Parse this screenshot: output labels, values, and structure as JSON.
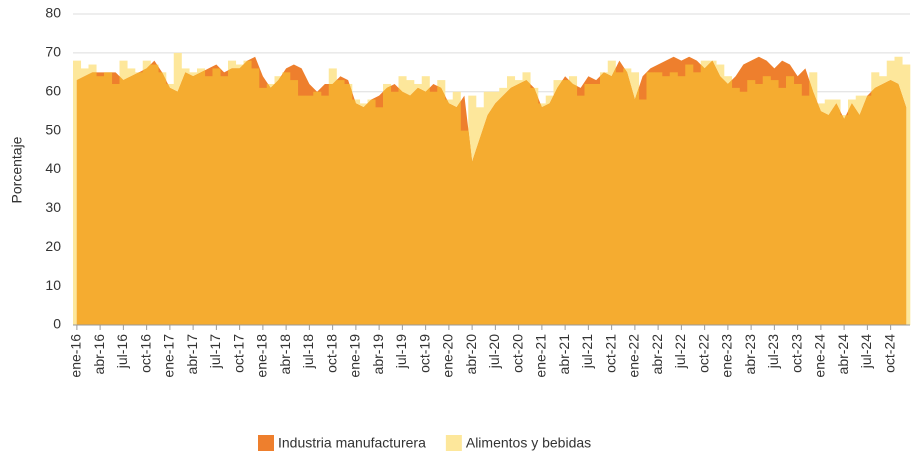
{
  "chart_data": {
    "type": "area-bar",
    "y_label": "Porcentaje",
    "categories": [
      "ene-16",
      null,
      null,
      "abr-16",
      null,
      null,
      "jul-16",
      null,
      null,
      "oct-16",
      null,
      null,
      "ene-17",
      null,
      null,
      "abr-17",
      null,
      null,
      "jul-17",
      null,
      null,
      "oct-17",
      null,
      null,
      "ene-18",
      null,
      null,
      "abr-18",
      null,
      null,
      "jul-18",
      null,
      null,
      "oct-18",
      null,
      null,
      "ene-19",
      null,
      null,
      "abr-19",
      null,
      null,
      "jul-19",
      null,
      null,
      "oct-19",
      null,
      null,
      "ene-20",
      null,
      null,
      "abr-20",
      null,
      null,
      "jul-20",
      null,
      null,
      "oct-20",
      null,
      null,
      "ene-21",
      null,
      null,
      "abr-21",
      null,
      null,
      "jul-21",
      null,
      null,
      "oct-21",
      null,
      null,
      "ene-22",
      null,
      null,
      "abr-22",
      null,
      null,
      "jul-22",
      null,
      null,
      "oct-22",
      null,
      null,
      "ene-23",
      null,
      null,
      "abr-23",
      null,
      null,
      "jul-23",
      null,
      null,
      "oct-23",
      null,
      null,
      "ene-24",
      null,
      null,
      "abr-24",
      null,
      null,
      "jul-24",
      null,
      null,
      "oct-24",
      null,
      null
    ],
    "series": [
      {
        "name": "Industria manufacturera",
        "color": "#ee7f2d",
        "kind": "area",
        "values": [
          63,
          64,
          65,
          65,
          65,
          65,
          63,
          64,
          65,
          66,
          68,
          65,
          61,
          60,
          65,
          64,
          65,
          66,
          67,
          65,
          66,
          66,
          68,
          69,
          64,
          61,
          63,
          66,
          67,
          66,
          62,
          60,
          62,
          62,
          64,
          63,
          57,
          56,
          58,
          59,
          61,
          62,
          60,
          59,
          61,
          60,
          62,
          61,
          57,
          56,
          59,
          42,
          48,
          54,
          57,
          59,
          61,
          62,
          63,
          61,
          56,
          57,
          61,
          64,
          62,
          61,
          64,
          63,
          65,
          64,
          68,
          65,
          58,
          64,
          66,
          67,
          68,
          69,
          68,
          69,
          68,
          66,
          68,
          64,
          62,
          64,
          67,
          68,
          69,
          68,
          66,
          68,
          67,
          64,
          66,
          60,
          55,
          54,
          57,
          53,
          57,
          54,
          59,
          61,
          62,
          63,
          62,
          56
        ]
      },
      {
        "name": "Alimentos y bebidas",
        "color": "#fde79b",
        "kind": "bar",
        "values": [
          68,
          66,
          67,
          64,
          65,
          62,
          68,
          66,
          65,
          68,
          67,
          65,
          62,
          70,
          66,
          65,
          66,
          64,
          66,
          64,
          68,
          67,
          68,
          66,
          61,
          62,
          64,
          65,
          63,
          59,
          59,
          60,
          59,
          66,
          63,
          62,
          58,
          57,
          58,
          56,
          62,
          60,
          64,
          63,
          62,
          64,
          60,
          63,
          58,
          60,
          50,
          59,
          56,
          60,
          60,
          61,
          64,
          63,
          65,
          61,
          57,
          59,
          63,
          63,
          64,
          59,
          62,
          62,
          65,
          68,
          65,
          66,
          65,
          58,
          65,
          65,
          64,
          65,
          64,
          67,
          65,
          68,
          68,
          67,
          64,
          61,
          60,
          63,
          62,
          64,
          63,
          61,
          64,
          62,
          59,
          65,
          57,
          58,
          58,
          54,
          58,
          59,
          59,
          65,
          64,
          68,
          69,
          67
        ]
      }
    ],
    "ylim": [
      0,
      80
    ],
    "yticks": [
      0,
      10,
      20,
      30,
      40,
      50,
      60,
      70,
      80
    ],
    "grid": true,
    "legend": "bottom"
  }
}
